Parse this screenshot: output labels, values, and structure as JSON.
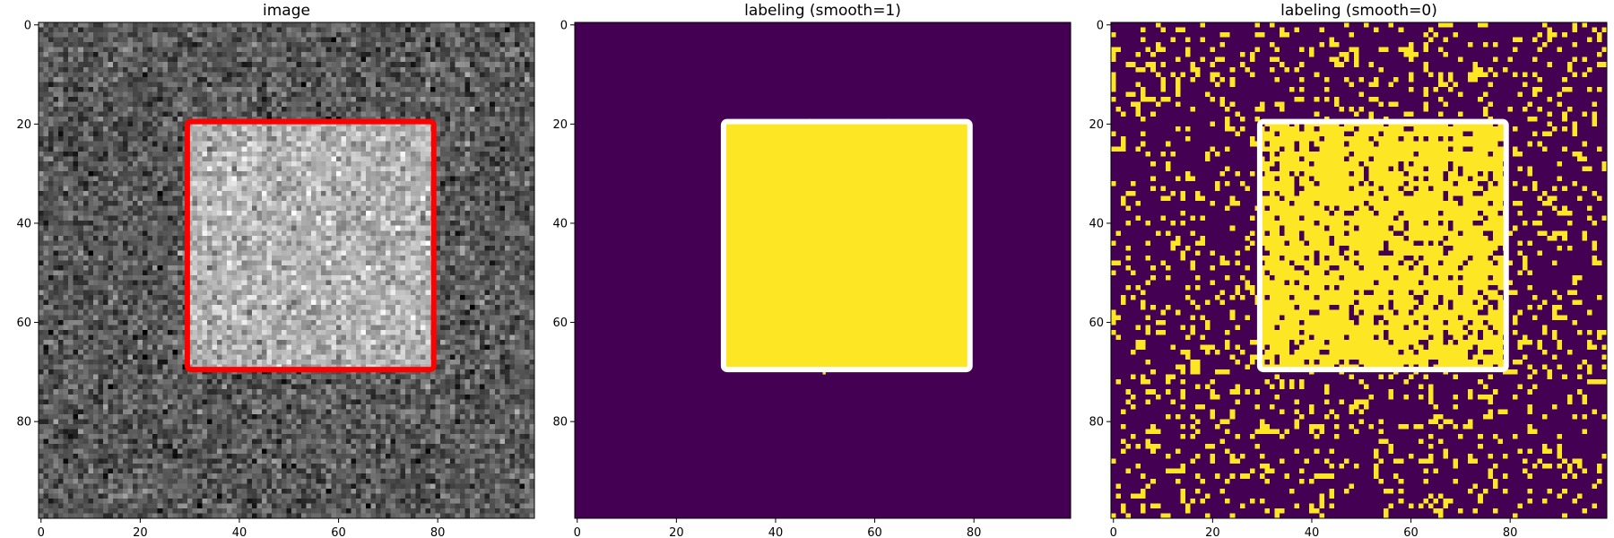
{
  "chart_data": [
    {
      "type": "heatmap",
      "title": "image",
      "colormap": "gray",
      "shape": [
        100,
        100
      ],
      "square_region": {
        "x": [
          30,
          80
        ],
        "y": [
          20,
          70
        ]
      },
      "background_level": 0.35,
      "square_level": 0.7,
      "noise": "gaussian",
      "xlim": [
        0,
        99
      ],
      "ylim": [
        99,
        0
      ],
      "xticks": [
        0,
        20,
        40,
        60,
        80
      ],
      "yticks": [
        0,
        20,
        40,
        60,
        80
      ],
      "outline": {
        "x": [
          30,
          80
        ],
        "y": [
          20,
          70
        ],
        "color": "#ff0000"
      }
    },
    {
      "type": "heatmap",
      "title": "labeling (smooth=1)",
      "colormap": "viridis",
      "shape": [
        100,
        100
      ],
      "square_region": {
        "x": [
          30,
          80
        ],
        "y": [
          20,
          70
        ]
      },
      "background_color": "#440154",
      "label_color": "#fde725",
      "xlim": [
        0,
        99
      ],
      "ylim": [
        99,
        0
      ],
      "xticks": [
        0,
        20,
        40,
        60,
        80
      ],
      "yticks": [
        0,
        20,
        40,
        60,
        80
      ],
      "outline": {
        "x": [
          30,
          80
        ],
        "y": [
          20,
          70
        ],
        "color": "#ffffff"
      }
    },
    {
      "type": "heatmap",
      "title": "labeling (smooth=0)",
      "colormap": "viridis",
      "shape": [
        100,
        100
      ],
      "square_region": {
        "x": [
          30,
          80
        ],
        "y": [
          20,
          70
        ]
      },
      "background_color": "#440154",
      "label_color": "#fde725",
      "outside_label_fraction": 0.16,
      "inside_label_fraction": 0.84,
      "xlim": [
        0,
        99
      ],
      "ylim": [
        99,
        0
      ],
      "xticks": [
        0,
        20,
        40,
        60,
        80
      ],
      "yticks": [
        0,
        20,
        40,
        60,
        80
      ],
      "outline": {
        "x": [
          30,
          80
        ],
        "y": [
          20,
          70
        ],
        "color": "#ffffff"
      }
    }
  ]
}
